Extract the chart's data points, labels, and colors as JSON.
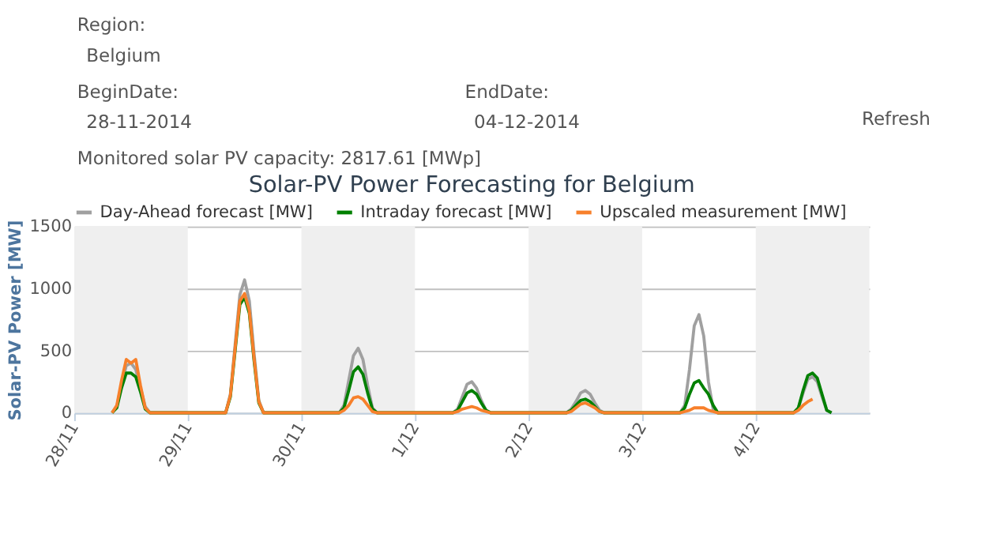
{
  "chart_data": {
    "type": "line",
    "title": "Solar-PV Power Forecasting for Belgium",
    "ylabel": "Solar-PV Power [MW]",
    "annotations": [
      "Region:",
      "Belgium",
      "BeginDate:",
      "28-11-2014",
      "EndDate:",
      "04-12-2014",
      "Refresh",
      "Monitored solar PV capacity: 2817.61 [MWp]"
    ],
    "x": [
      "2014-11-28T08:00",
      "2014-11-28T09:00",
      "2014-11-28T10:00",
      "2014-11-28T11:00",
      "2014-11-28T12:00",
      "2014-11-28T13:00",
      "2014-11-28T14:00",
      "2014-11-28T15:00",
      "2014-11-28T16:00",
      "2014-11-29T08:00",
      "2014-11-29T09:00",
      "2014-11-29T10:00",
      "2014-11-29T11:00",
      "2014-11-29T12:00",
      "2014-11-29T13:00",
      "2014-11-29T14:00",
      "2014-11-29T15:00",
      "2014-11-29T16:00",
      "2014-11-30T08:00",
      "2014-11-30T09:00",
      "2014-11-30T10:00",
      "2014-11-30T11:00",
      "2014-11-30T12:00",
      "2014-11-30T13:00",
      "2014-11-30T14:00",
      "2014-11-30T15:00",
      "2014-11-30T16:00",
      "2014-12-01T08:00",
      "2014-12-01T09:00",
      "2014-12-01T10:00",
      "2014-12-01T11:00",
      "2014-12-01T12:00",
      "2014-12-01T13:00",
      "2014-12-01T14:00",
      "2014-12-01T15:00",
      "2014-12-01T16:00",
      "2014-12-02T08:00",
      "2014-12-02T09:00",
      "2014-12-02T10:00",
      "2014-12-02T11:00",
      "2014-12-02T12:00",
      "2014-12-02T13:00",
      "2014-12-02T14:00",
      "2014-12-02T15:00",
      "2014-12-02T16:00",
      "2014-12-03T08:00",
      "2014-12-03T09:00",
      "2014-12-03T10:00",
      "2014-12-03T11:00",
      "2014-12-03T12:00",
      "2014-12-03T13:00",
      "2014-12-03T14:00",
      "2014-12-03T15:00",
      "2014-12-03T16:00",
      "2014-12-04T08:00",
      "2014-12-04T09:00",
      "2014-12-04T10:00",
      "2014-12-04T11:00",
      "2014-12-04T12:00",
      "2014-12-04T13:00",
      "2014-12-04T14:00",
      "2014-12-04T15:00",
      "2014-12-04T16:00"
    ],
    "series": [
      {
        "name": "Day-Ahead forecast [MW]",
        "color": "#a0a0a0",
        "values": [
          0,
          50,
          230,
          380,
          400,
          350,
          200,
          50,
          0,
          0,
          150,
          550,
          950,
          1070,
          900,
          480,
          100,
          0,
          0,
          60,
          260,
          460,
          520,
          430,
          220,
          40,
          0,
          0,
          30,
          130,
          230,
          250,
          200,
          100,
          20,
          0,
          0,
          30,
          90,
          160,
          180,
          150,
          80,
          20,
          0,
          0,
          60,
          350,
          700,
          790,
          620,
          250,
          30,
          0,
          0,
          40,
          160,
          270,
          290,
          250,
          130,
          20,
          0
        ]
      },
      {
        "name": "Intraday forecast [MW]",
        "color": "#008000",
        "values": [
          0,
          40,
          200,
          320,
          320,
          290,
          170,
          30,
          0,
          0,
          130,
          500,
          870,
          930,
          800,
          420,
          80,
          0,
          0,
          40,
          180,
          330,
          370,
          310,
          160,
          30,
          0,
          0,
          20,
          90,
          160,
          180,
          150,
          80,
          20,
          0,
          0,
          20,
          60,
          100,
          110,
          90,
          50,
          10,
          0,
          0,
          40,
          150,
          240,
          260,
          200,
          150,
          60,
          0,
          0,
          40,
          180,
          300,
          320,
          280,
          150,
          20,
          0
        ]
      },
      {
        "name": "Upscaled measurement [MW]",
        "color": "#f7802b",
        "x": [
          "2014-11-28T08:00",
          "2014-11-28T09:00",
          "2014-11-28T10:00",
          "2014-11-28T11:00",
          "2014-11-28T12:00",
          "2014-11-28T13:00",
          "2014-11-28T14:00",
          "2014-11-28T15:00",
          "2014-11-28T16:00",
          "2014-11-29T08:00",
          "2014-11-29T09:00",
          "2014-11-29T10:00",
          "2014-11-29T11:00",
          "2014-11-29T12:00",
          "2014-11-29T13:00",
          "2014-11-29T14:00",
          "2014-11-29T15:00",
          "2014-11-29T16:00",
          "2014-11-30T08:00",
          "2014-11-30T09:00",
          "2014-11-30T10:00",
          "2014-11-30T11:00",
          "2014-11-30T12:00",
          "2014-11-30T13:00",
          "2014-11-30T14:00",
          "2014-11-30T15:00",
          "2014-11-30T16:00",
          "2014-12-01T08:00",
          "2014-12-01T09:00",
          "2014-12-01T10:00",
          "2014-12-01T11:00",
          "2014-12-01T12:00",
          "2014-12-01T13:00",
          "2014-12-01T14:00",
          "2014-12-01T15:00",
          "2014-12-01T16:00",
          "2014-12-02T08:00",
          "2014-12-02T09:00",
          "2014-12-02T10:00",
          "2014-12-02T11:00",
          "2014-12-02T12:00",
          "2014-12-02T13:00",
          "2014-12-02T14:00",
          "2014-12-02T15:00",
          "2014-12-02T16:00",
          "2014-12-03T08:00",
          "2014-12-03T09:00",
          "2014-12-03T10:00",
          "2014-12-03T11:00",
          "2014-12-03T12:00",
          "2014-12-03T13:00",
          "2014-12-03T14:00",
          "2014-12-03T15:00",
          "2014-12-03T16:00",
          "2014-12-04T08:00",
          "2014-12-04T09:00",
          "2014-12-04T10:00",
          "2014-12-04T11:00",
          "2014-12-04T12:00"
        ],
        "values": [
          0,
          60,
          260,
          430,
          400,
          430,
          220,
          40,
          0,
          0,
          140,
          520,
          900,
          960,
          820,
          440,
          90,
          0,
          0,
          20,
          60,
          120,
          130,
          110,
          60,
          10,
          0,
          0,
          10,
          30,
          40,
          50,
          40,
          20,
          10,
          0,
          0,
          10,
          40,
          70,
          80,
          60,
          40,
          10,
          0,
          0,
          10,
          20,
          40,
          40,
          40,
          20,
          10,
          0,
          0,
          20,
          60,
          90,
          110
        ]
      }
    ],
    "xlim": [
      "2014-11-28",
      "2014-12-05"
    ],
    "xticks": [
      {
        "value": "2014-11-28",
        "label": "28/11"
      },
      {
        "value": "2014-11-29",
        "label": "29/11"
      },
      {
        "value": "2014-11-30",
        "label": "30/11"
      },
      {
        "value": "2014-12-01",
        "label": "1/12"
      },
      {
        "value": "2014-12-02",
        "label": "2/12"
      },
      {
        "value": "2014-12-03",
        "label": "3/12"
      },
      {
        "value": "2014-12-04",
        "label": "4/12"
      }
    ],
    "ylim": [
      0,
      1500
    ],
    "yticks": [
      0,
      500,
      {
        "value": 1000,
        "label": "1000"
      },
      {
        "value": 1500,
        "label": "1500"
      }
    ],
    "bands": [
      {
        "axis": "x",
        "from": "2014-11-28",
        "to": "2014-11-29",
        "color": "#efefef"
      },
      {
        "axis": "x",
        "from": "2014-11-30",
        "to": "2014-12-01",
        "color": "#efefef"
      },
      {
        "axis": "x",
        "from": "2014-12-02",
        "to": "2014-12-03",
        "color": "#efefef"
      },
      {
        "axis": "x",
        "from": "2014-12-04",
        "to": "2014-12-05",
        "color": "#efefef"
      }
    ],
    "grid": "y",
    "legend": "top",
    "marker": "none",
    "line_style": "solid"
  }
}
